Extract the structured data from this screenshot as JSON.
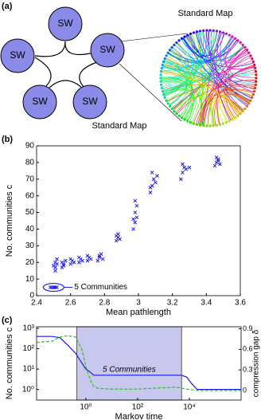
{
  "diagram": {
    "label": "(a)",
    "nodes": [
      {
        "label": "SW"
      },
      {
        "label": "SW"
      },
      {
        "label": "SW"
      },
      {
        "label": "SW"
      },
      {
        "label": "SW"
      }
    ],
    "map_title": "Standard Map",
    "caption": "Standard Map"
  },
  "chart_data": [
    {
      "type": "scatter",
      "label": "(b)",
      "xlabel": "Mean pathlength",
      "ylabel": "No. communities c",
      "color": "#1a1ae6",
      "x": [
        2.49,
        2.5,
        2.51,
        2.52,
        2.48,
        2.505,
        2.51,
        2.51,
        2.52,
        2.51,
        2.52,
        2.5,
        2.55,
        2.56,
        2.55,
        2.57,
        2.56,
        2.6,
        2.61,
        2.6,
        2.62,
        2.65,
        2.66,
        2.65,
        2.67,
        2.7,
        2.71,
        2.7,
        2.72,
        2.76,
        2.77,
        2.78,
        2.77,
        2.79,
        2.87,
        2.88,
        2.88,
        2.89,
        2.87,
        2.97,
        2.98,
        2.99,
        2.98,
        2.99,
        2.98,
        2.97,
        3.07,
        3.08,
        3.09,
        3.08,
        3.1,
        3.11,
        3.07,
        3.25,
        3.26,
        3.27,
        3.26,
        3.28,
        3.3,
        3.45,
        3.46,
        3.47,
        3.46,
        3.48,
        3.47
      ],
      "values": [
        5,
        5,
        5,
        5,
        5,
        5,
        15,
        17,
        19,
        20,
        22,
        18,
        17,
        19,
        20,
        21,
        18,
        19,
        21,
        22,
        20,
        20,
        22,
        23,
        21,
        21,
        23,
        24,
        22,
        21,
        23,
        25,
        24,
        22,
        33,
        35,
        37,
        34,
        36,
        40,
        44,
        47,
        50,
        54,
        57,
        46,
        62,
        66,
        70,
        74,
        68,
        72,
        65,
        70,
        74,
        77,
        79,
        76,
        77,
        78,
        80,
        82,
        83,
        79,
        81
      ],
      "xlim": [
        2.4,
        3.6
      ],
      "xticks": [
        2.4,
        2.6,
        2.8,
        3,
        3.2,
        3.4,
        3.6
      ],
      "ylim": [
        0,
        90
      ],
      "yticks": [
        0,
        10,
        20,
        30,
        40,
        50,
        60,
        70,
        80,
        90
      ],
      "annotation": {
        "text": "5 Communities",
        "x": 2.5,
        "y": 5
      }
    },
    {
      "type": "line",
      "label": "(c)",
      "xlabel": "Markov time",
      "ylabel": "No. communities c",
      "y2label": "compression gap δ",
      "xlog": true,
      "ylog": true,
      "xlim": [
        0.0125,
        1000000
      ],
      "xticks": [
        {
          "value": 1,
          "label": "10⁰"
        },
        {
          "value": 100,
          "label": "10²"
        },
        {
          "value": 10000,
          "label": "10⁴"
        }
      ],
      "ylim": [
        0.3,
        1200
      ],
      "yticks": [
        {
          "value": 1,
          "label": "10⁰"
        },
        {
          "value": 10,
          "label": "10¹"
        },
        {
          "value": 100,
          "label": "10²"
        },
        {
          "value": 1000,
          "label": "10³"
        }
      ],
      "y2lim": [
        -0.14,
        0.93
      ],
      "y2ticks": [
        0,
        0.3,
        0.6,
        0.9
      ],
      "series": [
        {
          "color": "#1a1ae6",
          "x": [
            0.0125,
            0.05,
            0.1,
            0.2,
            0.4,
            0.7,
            1,
            1.5,
            2,
            2.5,
            5000,
            8000,
            12000,
            20000,
            1000000
          ],
          "values": [
            400,
            400,
            350,
            150,
            60,
            20,
            10,
            7,
            5,
            5,
            5,
            4,
            2,
            1,
            1
          ]
        },
        {
          "color": "#33bb33",
          "axis": "y2",
          "dash": true,
          "x": [
            0.0125,
            0.05,
            0.1,
            0.2,
            0.4,
            0.7,
            1,
            1.5,
            2,
            3,
            10,
            100,
            1000,
            3000,
            8000,
            20000,
            1000000
          ],
          "values": [
            0.7,
            0.72,
            0.78,
            0.8,
            0.78,
            0.6,
            0.35,
            0.15,
            0.06,
            0.03,
            0.02,
            0.02,
            0.04,
            0.05,
            0.02,
            0,
            0
          ]
        }
      ],
      "region": {
        "x": [
          0.45,
          5000
        ],
        "text": "5 Communities",
        "color": "#c8c8ee"
      }
    }
  ]
}
